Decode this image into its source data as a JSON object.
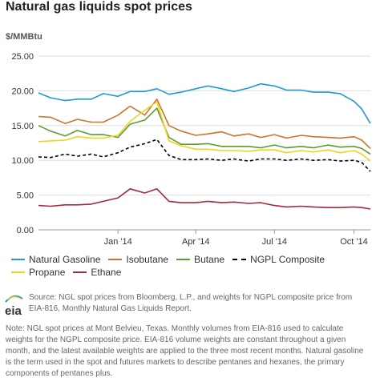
{
  "title": "Natural gas liquids spot prices",
  "chart_data": {
    "type": "line",
    "ylabel": "$/MMBtu",
    "ylim": [
      0,
      25
    ],
    "y_ticks": [
      "0.00",
      "5.00",
      "10.00",
      "15.00",
      "20.00",
      "25.00"
    ],
    "x_ticks": [
      "Jan '14",
      "Apr '14",
      "Jul '14",
      "Oct '14"
    ],
    "x_tick_dates": [
      "2014-01-01",
      "2014-04-01",
      "2014-07-01",
      "2014-10-01"
    ],
    "xlim": [
      "2013-10-01",
      "2014-10-20"
    ],
    "grid": "horizontal",
    "legend_position": "bottom",
    "x": [
      "2013-10-01",
      "2013-10-15",
      "2013-11-01",
      "2013-11-15",
      "2013-12-01",
      "2013-12-15",
      "2014-01-01",
      "2014-01-15",
      "2014-02-01",
      "2014-02-15",
      "2014-03-01",
      "2014-03-15",
      "2014-04-01",
      "2014-04-15",
      "2014-05-01",
      "2014-05-15",
      "2014-06-01",
      "2014-06-15",
      "2014-07-01",
      "2014-07-15",
      "2014-08-01",
      "2014-08-15",
      "2014-09-01",
      "2014-09-15",
      "2014-10-01",
      "2014-10-10",
      "2014-10-20"
    ],
    "series": [
      {
        "name": "Natural Gasoline",
        "color": "#1f9ad6",
        "dash": false,
        "values": [
          19.7,
          19.0,
          18.6,
          18.8,
          18.8,
          19.6,
          19.2,
          19.9,
          19.9,
          20.3,
          19.5,
          19.8,
          20.3,
          20.7,
          20.3,
          19.9,
          20.4,
          21.0,
          20.7,
          20.1,
          20.1,
          19.8,
          19.8,
          19.6,
          18.5,
          17.4,
          15.3
        ]
      },
      {
        "name": "Isobutane",
        "color": "#c8762a",
        "dash": false,
        "values": [
          16.3,
          16.2,
          15.3,
          15.9,
          15.5,
          15.5,
          16.5,
          17.8,
          16.5,
          18.8,
          15.0,
          14.2,
          13.6,
          13.8,
          14.1,
          13.5,
          13.8,
          13.3,
          13.7,
          13.2,
          13.6,
          13.4,
          13.3,
          13.2,
          13.4,
          12.9,
          11.7
        ]
      },
      {
        "name": "Butane",
        "color": "#5d9b32",
        "dash": false,
        "values": [
          15.0,
          14.2,
          13.5,
          14.3,
          13.7,
          13.7,
          13.3,
          15.2,
          15.8,
          17.5,
          13.3,
          12.3,
          12.3,
          12.4,
          12.0,
          12.0,
          12.0,
          11.8,
          12.2,
          11.8,
          12.0,
          11.8,
          12.2,
          11.9,
          12.0,
          11.7,
          10.9
        ]
      },
      {
        "name": "NGPL Composite",
        "color": "#000000",
        "dash": true,
        "values": [
          10.5,
          10.4,
          10.9,
          10.6,
          10.9,
          10.5,
          11.1,
          11.9,
          12.4,
          13.0,
          10.7,
          10.1,
          10.1,
          10.2,
          10.0,
          10.2,
          9.9,
          10.2,
          10.2,
          10.0,
          10.2,
          10.0,
          10.1,
          9.9,
          10.0,
          9.7,
          8.4
        ]
      },
      {
        "name": "Propane",
        "color": "#f2d21f",
        "dash": false,
        "values": [
          12.7,
          12.8,
          12.9,
          13.4,
          13.2,
          13.2,
          13.6,
          15.6,
          17.2,
          18.4,
          12.8,
          12.1,
          11.6,
          11.6,
          11.4,
          11.4,
          11.3,
          11.5,
          11.5,
          11.1,
          11.4,
          11.2,
          11.5,
          11.1,
          11.4,
          10.9,
          9.9
        ]
      },
      {
        "name": "Ethane",
        "color": "#a52a38",
        "dash": false,
        "values": [
          3.5,
          3.4,
          3.6,
          3.6,
          3.7,
          4.1,
          4.6,
          5.9,
          5.3,
          5.9,
          4.1,
          3.9,
          3.9,
          4.1,
          3.9,
          4.0,
          3.8,
          3.9,
          3.5,
          3.3,
          3.4,
          3.3,
          3.2,
          3.2,
          3.3,
          3.2,
          3.0
        ]
      }
    ]
  },
  "legend_rows": [
    [
      "Natural Gasoline",
      "Isobutane",
      "Butane",
      "NGPL Composite"
    ],
    [
      "Propane",
      "Ethane"
    ]
  ],
  "source": "Source: NGL spot prices from Bloomberg, L.P., and weights for NGPL composite price from EIA-816, Monthly Natural Gas Liquids Report.",
  "note": "Note: NGL spot prices at Mont Belvieu, Texas. Monthly volumes from EIA-816 used to calculate weights for the NGPL composite price. EIA-816 volume weights are constant throughout a given month, and the latest available weights are applied to the three most recent months. Natural gasoline is the term used in the spot and futures markets to describe pentanes and hexanes, the primary components of pentanes plus.",
  "logo": {
    "text": "eia",
    "icon": "eia-logo"
  }
}
